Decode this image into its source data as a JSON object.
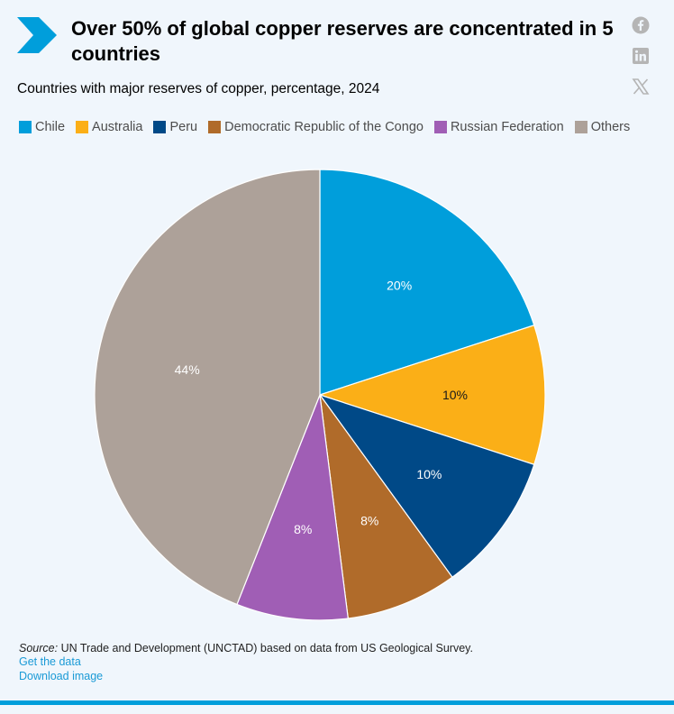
{
  "header": {
    "title": "Over 50% of global copper reserves are concentrated in 5 countries",
    "subtitle": "Countries with major reserves of copper, percentage, 2024"
  },
  "share": {
    "icons": [
      "facebook-icon",
      "linkedin-icon",
      "x-icon"
    ]
  },
  "colors": {
    "brand": "#009edb",
    "chevron": "#009edb",
    "link": "#1a9ad6",
    "background": "#f0f6fc"
  },
  "chart_data": {
    "type": "pie",
    "title": "Countries with major reserves of copper, percentage, 2024",
    "legend_position": "top-left",
    "slices": [
      {
        "name": "Chile",
        "value": 20,
        "label": "20%",
        "color": "#009edb"
      },
      {
        "name": "Australia",
        "value": 10,
        "label": "10%",
        "color": "#fbaf17"
      },
      {
        "name": "Peru",
        "value": 10,
        "label": "10%",
        "color": "#004987"
      },
      {
        "name": "Democratic Republic of the Congo",
        "value": 8,
        "label": "8%",
        "color": "#b06b2a"
      },
      {
        "name": "Russian Federation",
        "value": 8,
        "label": "8%",
        "color": "#a05eb5"
      },
      {
        "name": "Others",
        "value": 44,
        "label": "44%",
        "color": "#ada199"
      }
    ]
  },
  "footer": {
    "source_label": "Source:",
    "source_text": " UN Trade and Development (UNCTAD) based on data from US Geological Survey.",
    "get_data": "Get the data",
    "download": "Download image"
  }
}
